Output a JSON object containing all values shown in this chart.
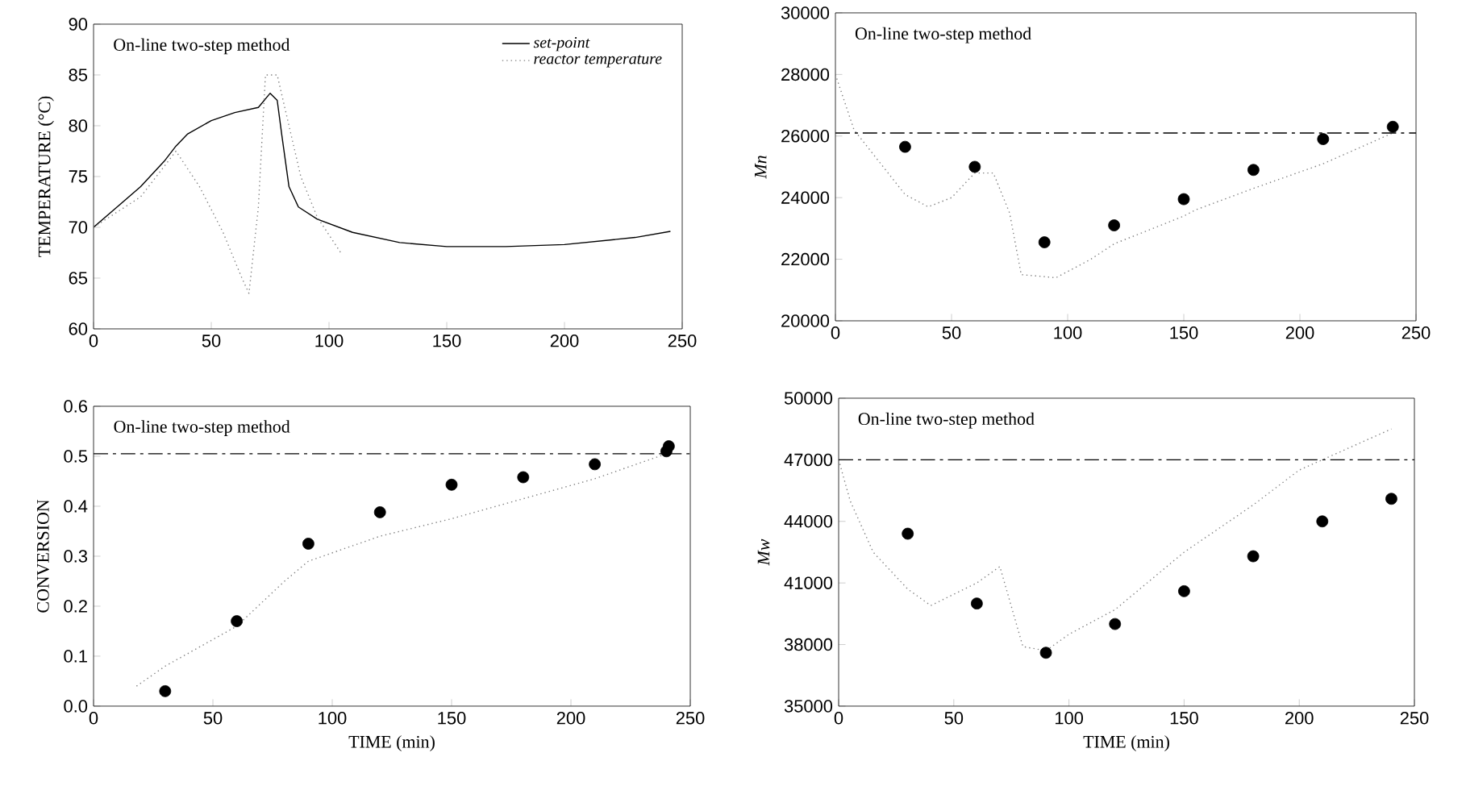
{
  "chart_data": [
    {
      "type": "line",
      "ylabel": "TEMPERATURE (°C)",
      "xlim": [
        0,
        250
      ],
      "ylim": [
        60,
        90
      ],
      "xticks": [
        0,
        50,
        100,
        150,
        200,
        250
      ],
      "yticks": [
        60,
        65,
        70,
        75,
        80,
        85,
        90
      ],
      "legend": "top right",
      "annotations": [
        "On-line two-step method"
      ],
      "series": [
        {
          "name": "set-point",
          "color": "#000000",
          "line_style": "solid",
          "x": [
            0,
            10,
            20,
            30,
            35,
            40,
            50,
            60,
            70,
            75,
            78,
            80,
            83,
            87,
            95,
            110,
            130,
            150,
            175,
            200,
            230,
            245
          ],
          "values": [
            70,
            72,
            74,
            76.5,
            78,
            79.2,
            80.5,
            81.3,
            81.8,
            83.2,
            82.5,
            79,
            74,
            72,
            70.8,
            69.5,
            68.5,
            68.1,
            68.1,
            68.3,
            69,
            69.6
          ]
        },
        {
          "name": "reactor temperature",
          "color": "#808080",
          "line_style": "dotted",
          "x": [
            0,
            20,
            35,
            45,
            55,
            63,
            66,
            70,
            73,
            78,
            82,
            88,
            95,
            105
          ],
          "values": [
            70,
            73,
            77.5,
            74,
            69.5,
            65,
            63.5,
            72,
            85,
            85,
            81,
            75,
            71,
            67.5
          ]
        }
      ]
    },
    {
      "type": "scatter",
      "marker": "circle",
      "ylabel": "Mn",
      "xlim": [
        0,
        250
      ],
      "ylim": [
        20000,
        30000
      ],
      "xticks": [
        0,
        50,
        100,
        150,
        200,
        250
      ],
      "yticks": [
        20000,
        22000,
        24000,
        26000,
        28000,
        30000
      ],
      "annotations": [
        "On-line two-step method"
      ],
      "ref_lines": [
        {
          "axis": "y",
          "value": 26100,
          "color": "#000000",
          "line_style": "dashed"
        }
      ],
      "series": [
        {
          "type": "line",
          "marker": "none",
          "color": "#808080",
          "line_style": "dotted",
          "x": [
            0,
            8,
            30,
            40,
            50,
            60,
            68,
            75,
            80,
            95,
            110,
            120,
            150,
            155,
            180,
            210,
            240
          ],
          "values": [
            28000,
            26200,
            24100,
            23700,
            24000,
            24800,
            24800,
            23500,
            21500,
            21400,
            22000,
            22500,
            23400,
            23600,
            24300,
            25100,
            26100
          ]
        },
        {
          "color": "#000000",
          "x": [
            30,
            60,
            90,
            120,
            150,
            180,
            210,
            240
          ],
          "values": [
            25650,
            25000,
            22550,
            23100,
            23950,
            24900,
            25900,
            26300
          ]
        }
      ]
    },
    {
      "type": "scatter",
      "marker": "circle",
      "xlabel": "TIME (min)",
      "ylabel": "CONVERSION",
      "xlim": [
        0,
        250
      ],
      "ylim": [
        0,
        0.6
      ],
      "xticks": [
        0,
        50,
        100,
        150,
        200,
        250
      ],
      "yticks": [
        {
          "value": 0,
          "label": "0.0"
        },
        0.1,
        0.2,
        0.3,
        0.4,
        0.5,
        0.6
      ],
      "annotations": [
        "On-line two-step method"
      ],
      "ref_lines": [
        {
          "axis": "y",
          "value": 0.505,
          "color": "#000000",
          "line_style": "dashed"
        }
      ],
      "series": [
        {
          "type": "line",
          "marker": "none",
          "color": "#808080",
          "line_style": "dotted",
          "x": [
            18,
            30,
            60,
            80,
            90,
            120,
            150,
            180,
            210,
            240
          ],
          "values": [
            0.04,
            0.08,
            0.16,
            0.25,
            0.29,
            0.34,
            0.375,
            0.415,
            0.455,
            0.505
          ]
        },
        {
          "color": "#000000",
          "x": [
            30,
            60,
            90,
            120,
            150,
            180,
            210,
            240,
            241
          ],
          "values": [
            0.03,
            0.17,
            0.325,
            0.388,
            0.443,
            0.458,
            0.484,
            0.51,
            0.52
          ]
        }
      ]
    },
    {
      "type": "scatter",
      "marker": "circle",
      "xlabel": "TIME (min)",
      "ylabel": "Mw",
      "xlim": [
        0,
        250
      ],
      "ylim": [
        35000,
        50000
      ],
      "xticks": [
        0,
        50,
        100,
        150,
        200,
        250
      ],
      "yticks": [
        35000,
        38000,
        41000,
        44000,
        47000,
        50000
      ],
      "annotations": [
        "On-line two-step method"
      ],
      "ref_lines": [
        {
          "axis": "y",
          "value": 47000,
          "color": "#000000",
          "line_style": "dashed"
        }
      ],
      "series": [
        {
          "type": "line",
          "marker": "none",
          "color": "#808080",
          "line_style": "dotted",
          "x": [
            0,
            5,
            15,
            30,
            40,
            60,
            70,
            80,
            90,
            100,
            120,
            150,
            180,
            200,
            240
          ],
          "values": [
            47000,
            45000,
            42500,
            40700,
            39900,
            41000,
            41800,
            37900,
            37700,
            38500,
            39700,
            42500,
            44800,
            46500,
            48500
          ]
        },
        {
          "color": "#000000",
          "x": [
            30,
            60,
            90,
            120,
            150,
            180,
            210,
            240
          ],
          "values": [
            43400,
            40000,
            37600,
            39000,
            40600,
            42300,
            44000,
            45100
          ]
        }
      ]
    }
  ]
}
